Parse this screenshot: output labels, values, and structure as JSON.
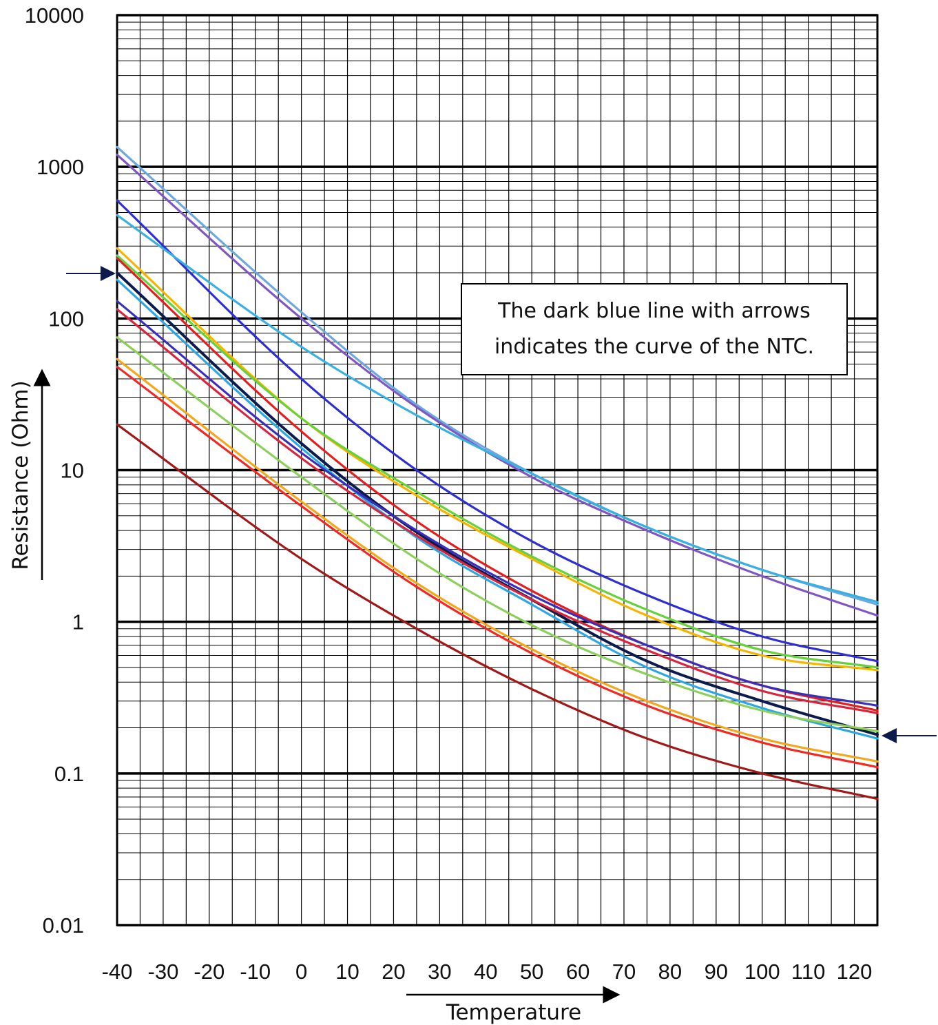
{
  "chart_data": {
    "type": "line",
    "xlabel": "Temperature",
    "ylabel": "Resistance (Ohm)",
    "xlim": [
      -40,
      125
    ],
    "ylim": [
      0.01,
      10000
    ],
    "yscale": "log",
    "grid": true,
    "x_ticks": [
      -40,
      -30,
      -20,
      -10,
      0,
      10,
      20,
      30,
      40,
      50,
      60,
      70,
      80,
      90,
      100,
      110,
      120
    ],
    "y_ticks": [
      0.01,
      0.1,
      1,
      10,
      100,
      1000,
      10000
    ],
    "x_tick_labels": [
      "-40",
      "-30",
      "-20",
      "-10",
      "0",
      "10",
      "20",
      "30",
      "40",
      "50",
      "60",
      "70",
      "80",
      "90",
      "100",
      "110",
      "120"
    ],
    "y_tick_labels": [
      "0.01",
      "0.1",
      "1",
      "10",
      "100",
      "1000",
      "10000"
    ],
    "annotation": "The dark blue line with arrows indicates the curve of the NTC.",
    "highlighted_series_color": "#0d1b4c",
    "series": [
      {
        "color": "#6fa8dc",
        "x": [
          -40,
          0,
          25,
          50,
          75,
          100,
          125
        ],
        "y": [
          1350,
          110,
          27,
          9.5,
          4.2,
          2.2,
          1.3
        ]
      },
      {
        "color": "#7e57c2",
        "x": [
          -40,
          0,
          25,
          50,
          75,
          100,
          125
        ],
        "y": [
          1200,
          100,
          26,
          9,
          4,
          2,
          1.1
        ]
      },
      {
        "color": "#2f2fd0",
        "x": [
          -40,
          0,
          25,
          50,
          75,
          100,
          125
        ],
        "y": [
          600,
          40,
          10,
          3.4,
          1.5,
          0.8,
          0.55
        ]
      },
      {
        "color": "#3ab0e0",
        "x": [
          -40,
          0,
          25,
          50,
          75,
          100,
          125
        ],
        "y": [
          480,
          65,
          23,
          9.5,
          4.2,
          2.2,
          1.35
        ]
      },
      {
        "color": "#f5b400",
        "x": [
          -40,
          0,
          25,
          50,
          75,
          100,
          125
        ],
        "y": [
          290,
          22,
          6.8,
          2.6,
          1.1,
          0.6,
          0.48
        ]
      },
      {
        "color": "#66d13a",
        "x": [
          -40,
          0,
          25,
          50,
          75,
          100,
          125
        ],
        "y": [
          260,
          22,
          7.2,
          2.7,
          1.2,
          0.65,
          0.5
        ]
      },
      {
        "color": "#e02020",
        "x": [
          -40,
          0,
          25,
          50,
          75,
          100,
          125
        ],
        "y": [
          250,
          18,
          4.6,
          1.6,
          0.7,
          0.38,
          0.26
        ]
      },
      {
        "color": "#0d1b4c",
        "x": [
          -40,
          0,
          25,
          50,
          75,
          100,
          125
        ],
        "y": [
          200,
          15,
          3.9,
          1.4,
          0.55,
          0.3,
          0.18
        ]
      },
      {
        "color": "#2ea7e0",
        "x": [
          -40,
          0,
          25,
          50,
          75,
          100,
          125
        ],
        "y": [
          180,
          14,
          3.6,
          1.3,
          0.5,
          0.27,
          0.17
        ]
      },
      {
        "color": "#3a2fb8",
        "x": [
          -40,
          0,
          25,
          50,
          75,
          100,
          125
        ],
        "y": [
          130,
          13,
          4,
          1.5,
          0.7,
          0.38,
          0.28
        ]
      },
      {
        "color": "#d6263d",
        "x": [
          -40,
          0,
          25,
          50,
          75,
          100,
          125
        ],
        "y": [
          115,
          12,
          3.7,
          1.4,
          0.65,
          0.35,
          0.25
        ]
      },
      {
        "color": "#8ccf5a",
        "x": [
          -40,
          0,
          25,
          50,
          75,
          100,
          125
        ],
        "y": [
          75,
          9,
          2.6,
          0.95,
          0.45,
          0.26,
          0.19
        ]
      },
      {
        "color": "#f2a81d",
        "x": [
          -40,
          0,
          25,
          50,
          75,
          100,
          125
        ],
        "y": [
          54,
          6.2,
          1.8,
          0.66,
          0.3,
          0.17,
          0.12
        ]
      },
      {
        "color": "#ee2a24",
        "x": [
          -40,
          0,
          25,
          50,
          75,
          100,
          125
        ],
        "y": [
          48,
          5.8,
          1.7,
          0.62,
          0.28,
          0.16,
          0.11
        ]
      },
      {
        "color": "#a01818",
        "x": [
          -40,
          0,
          25,
          50,
          75,
          100,
          125
        ],
        "y": [
          20,
          2.6,
          0.9,
          0.36,
          0.17,
          0.1,
          0.068
        ]
      }
    ]
  }
}
